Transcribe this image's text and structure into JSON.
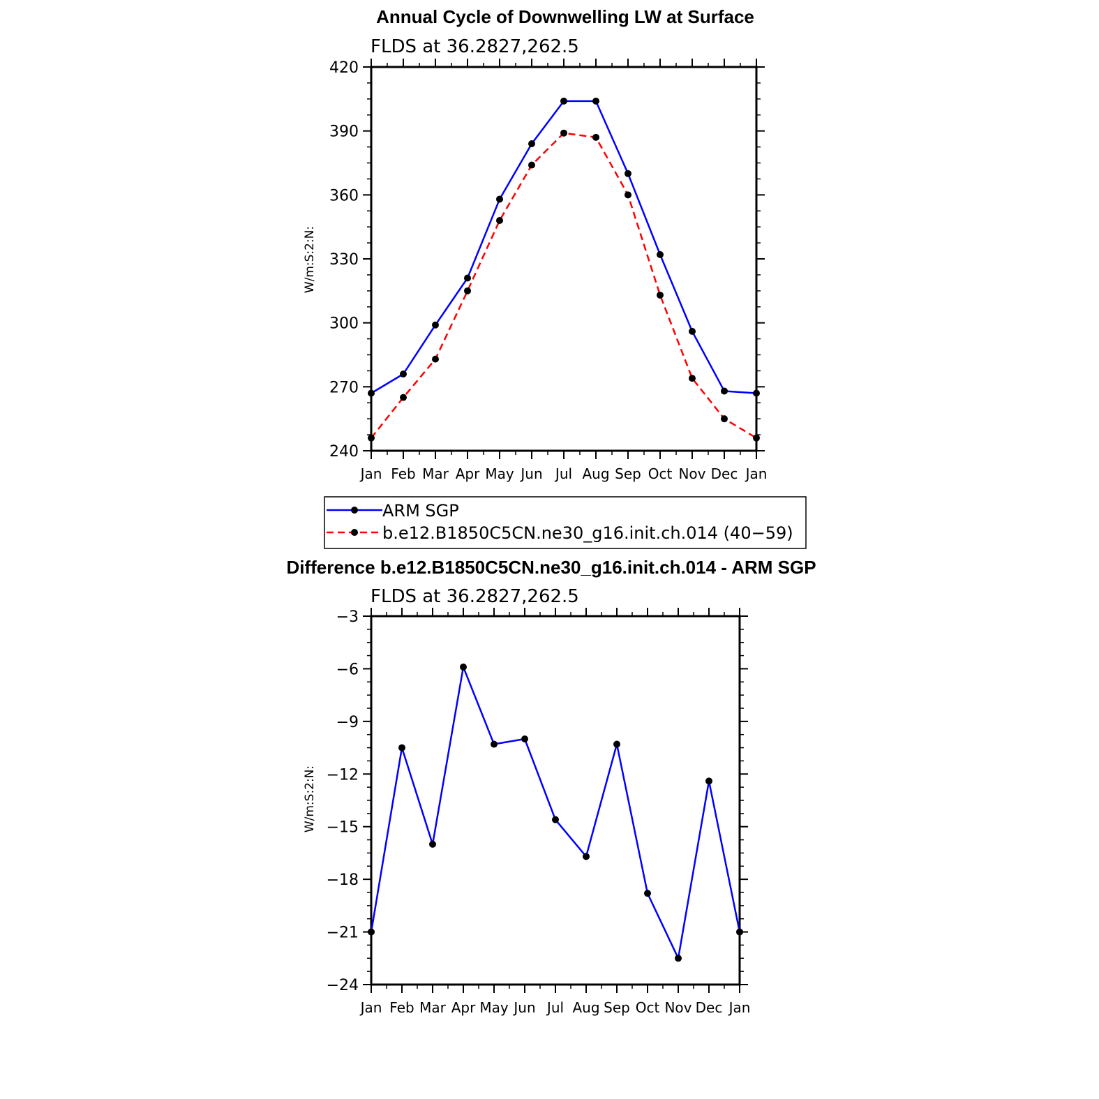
{
  "chart_data": [
    {
      "type": "line",
      "title": "Annual Cycle of Downwelling LW at Surface",
      "subtitle": "FLDS at 36.2827,262.5",
      "ylabel": "W/m:S:2:N:",
      "xlabel": "",
      "categories": [
        "Jan",
        "Feb",
        "Mar",
        "Apr",
        "May",
        "Jun",
        "Jul",
        "Aug",
        "Sep",
        "Oct",
        "Nov",
        "Dec",
        "Jan"
      ],
      "ylim": [
        240,
        420
      ],
      "yticks": [
        "240",
        "270",
        "300",
        "330",
        "360",
        "390",
        "420"
      ],
      "grid": false,
      "legend_position": "bottom",
      "series": [
        {
          "name": "ARM SGP",
          "color": "#0000ff",
          "style": "solid",
          "values": [
            267,
            276,
            299,
            321,
            358,
            384,
            404,
            404,
            370,
            332,
            296,
            268,
            267
          ]
        },
        {
          "name": "b.e12.B1850C5CN.ne30_g16.init.ch.014 (40−59)",
          "color": "#ff0000",
          "style": "dashed",
          "values": [
            246,
            265,
            283,
            315,
            348,
            374,
            389,
            387,
            360,
            313,
            274,
            255,
            246
          ]
        }
      ]
    },
    {
      "type": "line",
      "title": "Difference b.e12.B1850C5CN.ne30_g16.init.ch.014 - ARM SGP",
      "subtitle": "FLDS at 36.2827,262.5",
      "ylabel": "W/m:S:2:N:",
      "xlabel": "",
      "categories": [
        "Jan",
        "Feb",
        "Mar",
        "Apr",
        "May",
        "Jun",
        "Jul",
        "Aug",
        "Sep",
        "Oct",
        "Nov",
        "Dec",
        "Jan"
      ],
      "ylim": [
        -24,
        -3
      ],
      "yticks": [
        "−24",
        "−21",
        "−18",
        "−15",
        "−12",
        "−9",
        "−6",
        "−3"
      ],
      "grid": false,
      "series": [
        {
          "color": "#0000ff",
          "style": "solid",
          "values": [
            -21.0,
            -10.5,
            -16.0,
            -5.9,
            -10.3,
            -10.0,
            -14.6,
            -16.7,
            -10.3,
            -18.8,
            -22.5,
            -12.4,
            -21.0
          ]
        }
      ]
    }
  ]
}
